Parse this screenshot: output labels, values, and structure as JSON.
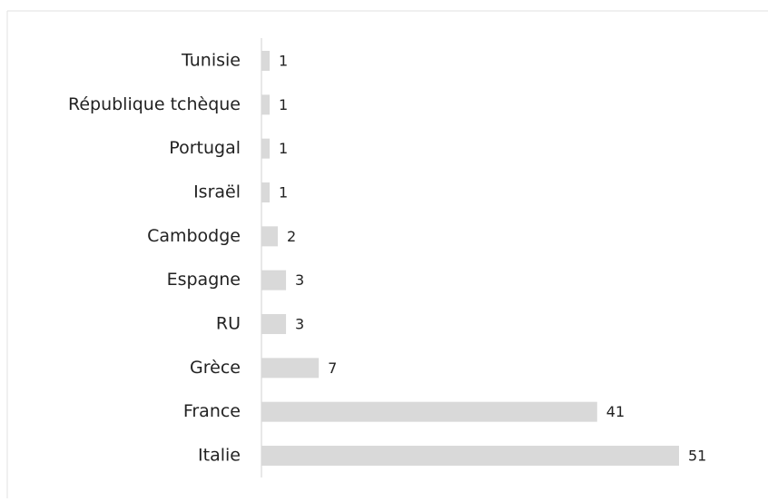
{
  "chart_data": {
    "type": "bar",
    "orientation": "horizontal",
    "categories": [
      "Tunisie",
      "République tchèque",
      "Portugal",
      "Israël",
      "Cambodge",
      "Espagne",
      "RU",
      "Grèce",
      "France",
      "Italie"
    ],
    "values": [
      1,
      1,
      1,
      1,
      2,
      3,
      3,
      7,
      41,
      51
    ],
    "color": "#d9d9d9"
  }
}
